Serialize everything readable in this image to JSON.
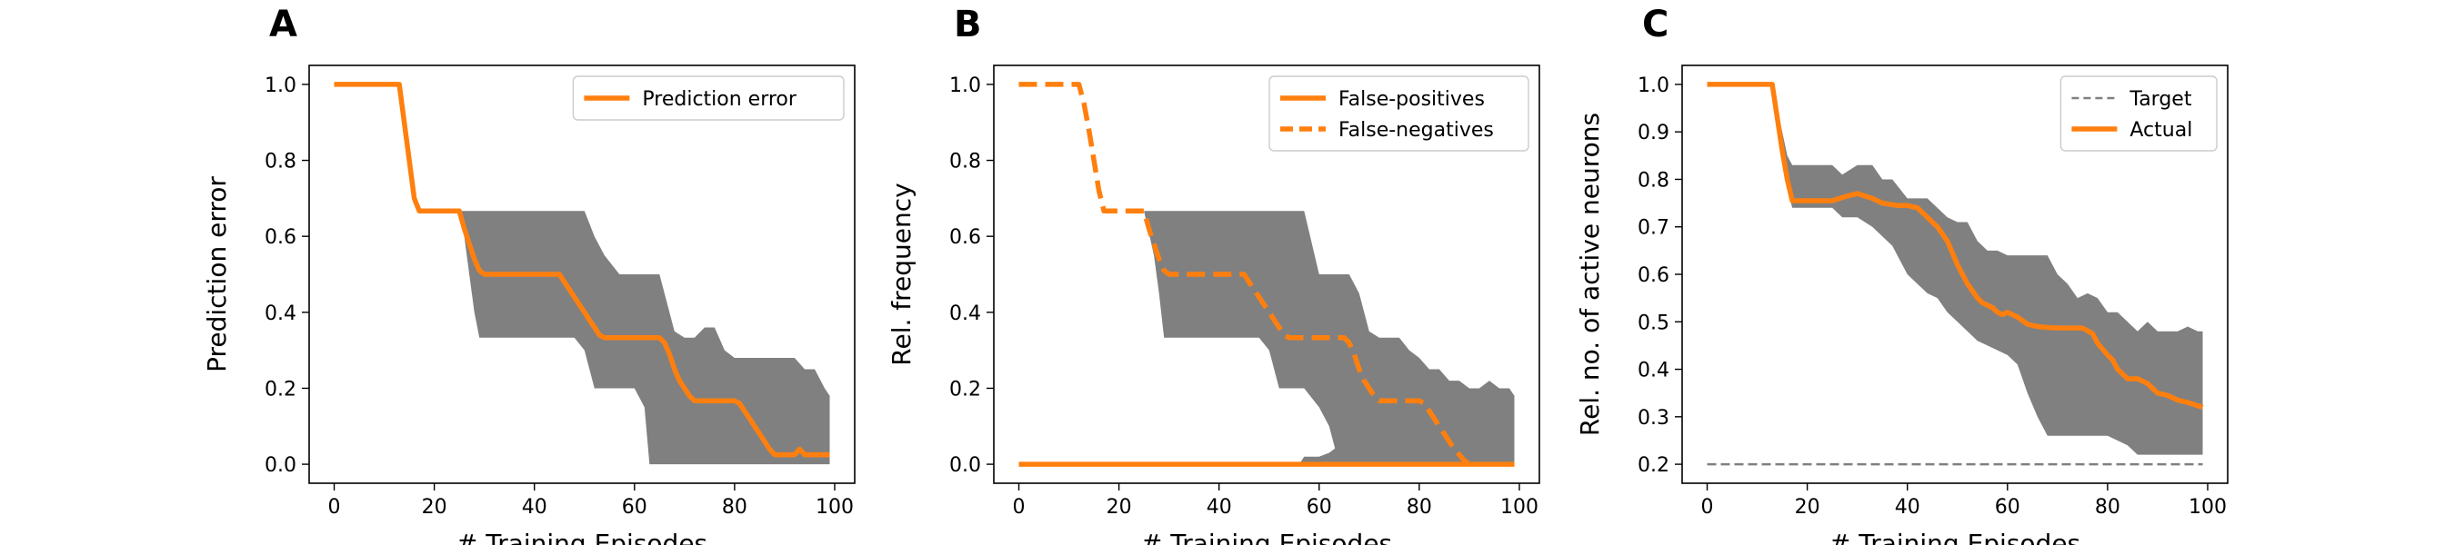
{
  "chart_data": [
    {
      "panel": "A",
      "type": "line",
      "xlabel": "# Training Episodes",
      "ylabel": "Prediction error",
      "xlim": [
        -5,
        104
      ],
      "ylim": [
        -0.05,
        1.05
      ],
      "xticks": [
        0,
        20,
        40,
        60,
        80,
        100
      ],
      "yticks": [
        0.0,
        0.2,
        0.4,
        0.6,
        0.8,
        1.0
      ],
      "ytick_labels": [
        "0.0",
        "0.2",
        "0.4",
        "0.6",
        "0.8",
        "1.0"
      ],
      "legend": "top-right",
      "band_color": "#808080",
      "bands": [
        {
          "x": [
            25,
            26,
            27,
            28,
            29,
            30,
            45,
            48,
            50,
            52,
            54,
            57,
            60,
            62,
            63,
            64,
            65,
            66,
            68,
            70,
            72,
            74,
            76,
            78,
            80,
            82,
            84,
            86,
            88,
            90,
            92,
            94,
            96,
            98,
            99
          ],
          "lower": [
            0.667,
            0.6,
            0.5,
            0.4,
            0.333,
            0.333,
            0.333,
            0.333,
            0.3,
            0.2,
            0.2,
            0.2,
            0.2,
            0.15,
            0.0,
            0.0,
            0.0,
            0.0,
            0.0,
            0.0,
            0.0,
            0.0,
            0.0,
            0.0,
            0.0,
            0.0,
            0.0,
            0.0,
            0.0,
            0.0,
            0.0,
            0.0,
            0.0,
            0.0,
            0.0
          ],
          "upper": [
            0.667,
            0.667,
            0.667,
            0.667,
            0.667,
            0.667,
            0.667,
            0.667,
            0.667,
            0.6,
            0.55,
            0.5,
            0.5,
            0.5,
            0.5,
            0.5,
            0.5,
            0.45,
            0.35,
            0.333,
            0.333,
            0.36,
            0.36,
            0.3,
            0.28,
            0.28,
            0.28,
            0.28,
            0.28,
            0.28,
            0.28,
            0.25,
            0.25,
            0.2,
            0.18
          ]
        }
      ],
      "series": [
        {
          "name": "Prediction error",
          "color": "#ff7f0e",
          "dash": "solid",
          "x": [
            0,
            13,
            14,
            15,
            16,
            17,
            25,
            26,
            27,
            28,
            29,
            30,
            45,
            46,
            47,
            48,
            49,
            50,
            51,
            52,
            53,
            54,
            55,
            56,
            65,
            66,
            67,
            68,
            69,
            70,
            71,
            72,
            80,
            81,
            82,
            83,
            84,
            85,
            86,
            87,
            88,
            89,
            90,
            92,
            93,
            94,
            95,
            96,
            99
          ],
          "y": [
            1.0,
            1.0,
            0.9,
            0.8,
            0.7,
            0.667,
            0.667,
            0.62,
            0.58,
            0.54,
            0.51,
            0.5,
            0.5,
            0.48,
            0.46,
            0.44,
            0.42,
            0.4,
            0.38,
            0.36,
            0.34,
            0.333,
            0.333,
            0.333,
            0.333,
            0.32,
            0.29,
            0.25,
            0.22,
            0.2,
            0.18,
            0.167,
            0.167,
            0.16,
            0.14,
            0.12,
            0.1,
            0.08,
            0.06,
            0.04,
            0.025,
            0.025,
            0.025,
            0.025,
            0.04,
            0.025,
            0.025,
            0.025,
            0.025
          ]
        }
      ]
    },
    {
      "panel": "B",
      "type": "line",
      "xlabel": "# Training Episodes",
      "ylabel": "Rel. frequency",
      "xlim": [
        -5,
        104
      ],
      "ylim": [
        -0.05,
        1.05
      ],
      "xticks": [
        0,
        20,
        40,
        60,
        80,
        100
      ],
      "yticks": [
        0.0,
        0.2,
        0.4,
        0.6,
        0.8,
        1.0
      ],
      "ytick_labels": [
        "0.0",
        "0.2",
        "0.4",
        "0.6",
        "0.8",
        "1.0"
      ],
      "legend": "top-right",
      "band_color": "#808080",
      "bands": [
        {
          "x": [
            25,
            27,
            28,
            29,
            30,
            45,
            48,
            50,
            52,
            54,
            57,
            60,
            62,
            64,
            65,
            66,
            68,
            70,
            72,
            74,
            76,
            78,
            80,
            82,
            84,
            86,
            88,
            90,
            92,
            94,
            96,
            98,
            99
          ],
          "lower": [
            0.667,
            0.55,
            0.45,
            0.333,
            0.333,
            0.333,
            0.333,
            0.3,
            0.2,
            0.2,
            0.2,
            0.15,
            0.1,
            0.0,
            0.0,
            0.0,
            0.0,
            0.0,
            0.0,
            0.0,
            0.0,
            0.0,
            0.0,
            0.0,
            0.0,
            0.0,
            0.0,
            0.0,
            0.0,
            0.0,
            0.0,
            0.0,
            0.0
          ],
          "upper": [
            0.667,
            0.667,
            0.667,
            0.667,
            0.667,
            0.667,
            0.667,
            0.667,
            0.667,
            0.667,
            0.667,
            0.5,
            0.5,
            0.5,
            0.5,
            0.5,
            0.45,
            0.35,
            0.333,
            0.333,
            0.333,
            0.3,
            0.28,
            0.25,
            0.25,
            0.22,
            0.22,
            0.2,
            0.2,
            0.22,
            0.2,
            0.2,
            0.18
          ]
        },
        {
          "x": [
            54,
            56,
            57,
            58,
            60,
            62,
            64,
            66,
            68,
            70,
            72,
            74,
            76,
            78,
            80,
            82,
            84,
            86,
            88,
            90,
            92,
            94,
            96,
            98,
            99
          ],
          "lower": [
            0.0,
            0.0,
            0.0,
            0.0,
            0.0,
            0.0,
            0.0,
            0.0,
            0.0,
            0.0,
            0.0,
            0.0,
            0.0,
            0.0,
            0.0,
            0.0,
            0.0,
            0.0,
            0.0,
            0.0,
            0.0,
            0.0,
            0.0,
            0.0,
            0.0
          ],
          "upper": [
            0.0,
            0.0,
            0.02,
            0.02,
            0.02,
            0.03,
            0.05,
            0.05,
            0.05,
            0.05,
            0.05,
            0.05,
            0.05,
            0.05,
            0.05,
            0.05,
            0.05,
            0.05,
            0.05,
            0.05,
            0.05,
            0.05,
            0.05,
            0.05,
            0.05
          ]
        }
      ],
      "series": [
        {
          "name": "False-positives",
          "color": "#ff7f0e",
          "dash": "solid",
          "x": [
            0,
            99
          ],
          "y": [
            0.0,
            0.0
          ]
        },
        {
          "name": "False-negatives",
          "color": "#ff7f0e",
          "dash": "dashed",
          "x": [
            0,
            12,
            13,
            14,
            15,
            16,
            17,
            25,
            26,
            27,
            28,
            29,
            30,
            45,
            46,
            47,
            48,
            49,
            50,
            51,
            52,
            53,
            54,
            55,
            56,
            65,
            66,
            67,
            68,
            69,
            70,
            71,
            72,
            80,
            81,
            82,
            83,
            84,
            85,
            86,
            87,
            88,
            89,
            90
          ],
          "y": [
            1.0,
            1.0,
            0.95,
            0.88,
            0.8,
            0.72,
            0.667,
            0.667,
            0.62,
            0.58,
            0.54,
            0.51,
            0.5,
            0.5,
            0.48,
            0.46,
            0.44,
            0.42,
            0.4,
            0.38,
            0.36,
            0.34,
            0.333,
            0.333,
            0.333,
            0.333,
            0.32,
            0.29,
            0.25,
            0.22,
            0.2,
            0.18,
            0.167,
            0.167,
            0.16,
            0.14,
            0.12,
            0.1,
            0.08,
            0.06,
            0.04,
            0.025,
            0.01,
            0.0
          ]
        }
      ]
    },
    {
      "panel": "C",
      "type": "line",
      "xlabel": "# Training Episodes",
      "ylabel": "Rel. no. of active neurons",
      "xlim": [
        -5,
        104
      ],
      "ylim": [
        0.16,
        1.04
      ],
      "xticks": [
        0,
        20,
        40,
        60,
        80,
        100
      ],
      "yticks": [
        0.2,
        0.3,
        0.4,
        0.5,
        0.6,
        0.7,
        0.8,
        0.9,
        1.0
      ],
      "ytick_labels": [
        "0.2",
        "0.3",
        "0.4",
        "0.5",
        "0.6",
        "0.7",
        "0.8",
        "0.9",
        "1.0"
      ],
      "legend": "top-right",
      "band_color": "#808080",
      "bands": [
        {
          "x": [
            13,
            14,
            15,
            16,
            17,
            18,
            20,
            25,
            27,
            30,
            33,
            35,
            37,
            40,
            42,
            44,
            46,
            48,
            50,
            52,
            54,
            56,
            58,
            60,
            62,
            64,
            66,
            68,
            70,
            72,
            74,
            76,
            78,
            80,
            82,
            84,
            86,
            88,
            90,
            92,
            94,
            96,
            98,
            99
          ],
          "lower": [
            1.0,
            0.93,
            0.85,
            0.78,
            0.74,
            0.74,
            0.74,
            0.74,
            0.72,
            0.72,
            0.7,
            0.68,
            0.66,
            0.6,
            0.58,
            0.56,
            0.55,
            0.52,
            0.5,
            0.48,
            0.46,
            0.45,
            0.44,
            0.43,
            0.41,
            0.35,
            0.3,
            0.26,
            0.26,
            0.26,
            0.26,
            0.26,
            0.26,
            0.26,
            0.25,
            0.24,
            0.22,
            0.22,
            0.22,
            0.22,
            0.22,
            0.22,
            0.22,
            0.22
          ],
          "upper": [
            1.0,
            0.95,
            0.9,
            0.85,
            0.83,
            0.83,
            0.83,
            0.83,
            0.81,
            0.83,
            0.83,
            0.8,
            0.8,
            0.76,
            0.76,
            0.76,
            0.74,
            0.72,
            0.71,
            0.71,
            0.67,
            0.65,
            0.65,
            0.64,
            0.64,
            0.64,
            0.64,
            0.64,
            0.6,
            0.58,
            0.55,
            0.56,
            0.55,
            0.52,
            0.52,
            0.5,
            0.48,
            0.5,
            0.48,
            0.48,
            0.48,
            0.49,
            0.48,
            0.48
          ]
        }
      ],
      "series": [
        {
          "name": "Target",
          "color": "#808080",
          "dash": "dashed-thin",
          "x": [
            0,
            99
          ],
          "y": [
            0.2,
            0.2
          ]
        },
        {
          "name": "Actual",
          "color": "#ff7f0e",
          "dash": "solid",
          "x": [
            0,
            13,
            14,
            15,
            16,
            17,
            18,
            20,
            22,
            25,
            28,
            30,
            33,
            35,
            38,
            40,
            42,
            44,
            45,
            46,
            48,
            50,
            51,
            52,
            54,
            55,
            56,
            57,
            58,
            59,
            60,
            62,
            64,
            66,
            68,
            70,
            72,
            75,
            77,
            78,
            80,
            81,
            82,
            84,
            86,
            88,
            90,
            92,
            94,
            96,
            99
          ],
          "y": [
            1.0,
            1.0,
            0.93,
            0.86,
            0.8,
            0.755,
            0.755,
            0.755,
            0.755,
            0.755,
            0.765,
            0.77,
            0.76,
            0.75,
            0.745,
            0.745,
            0.74,
            0.72,
            0.71,
            0.7,
            0.67,
            0.62,
            0.6,
            0.58,
            0.55,
            0.54,
            0.535,
            0.53,
            0.52,
            0.515,
            0.52,
            0.51,
            0.495,
            0.49,
            0.488,
            0.487,
            0.487,
            0.487,
            0.475,
            0.455,
            0.43,
            0.42,
            0.4,
            0.38,
            0.38,
            0.37,
            0.35,
            0.345,
            0.335,
            0.33,
            0.32
          ]
        }
      ]
    }
  ]
}
